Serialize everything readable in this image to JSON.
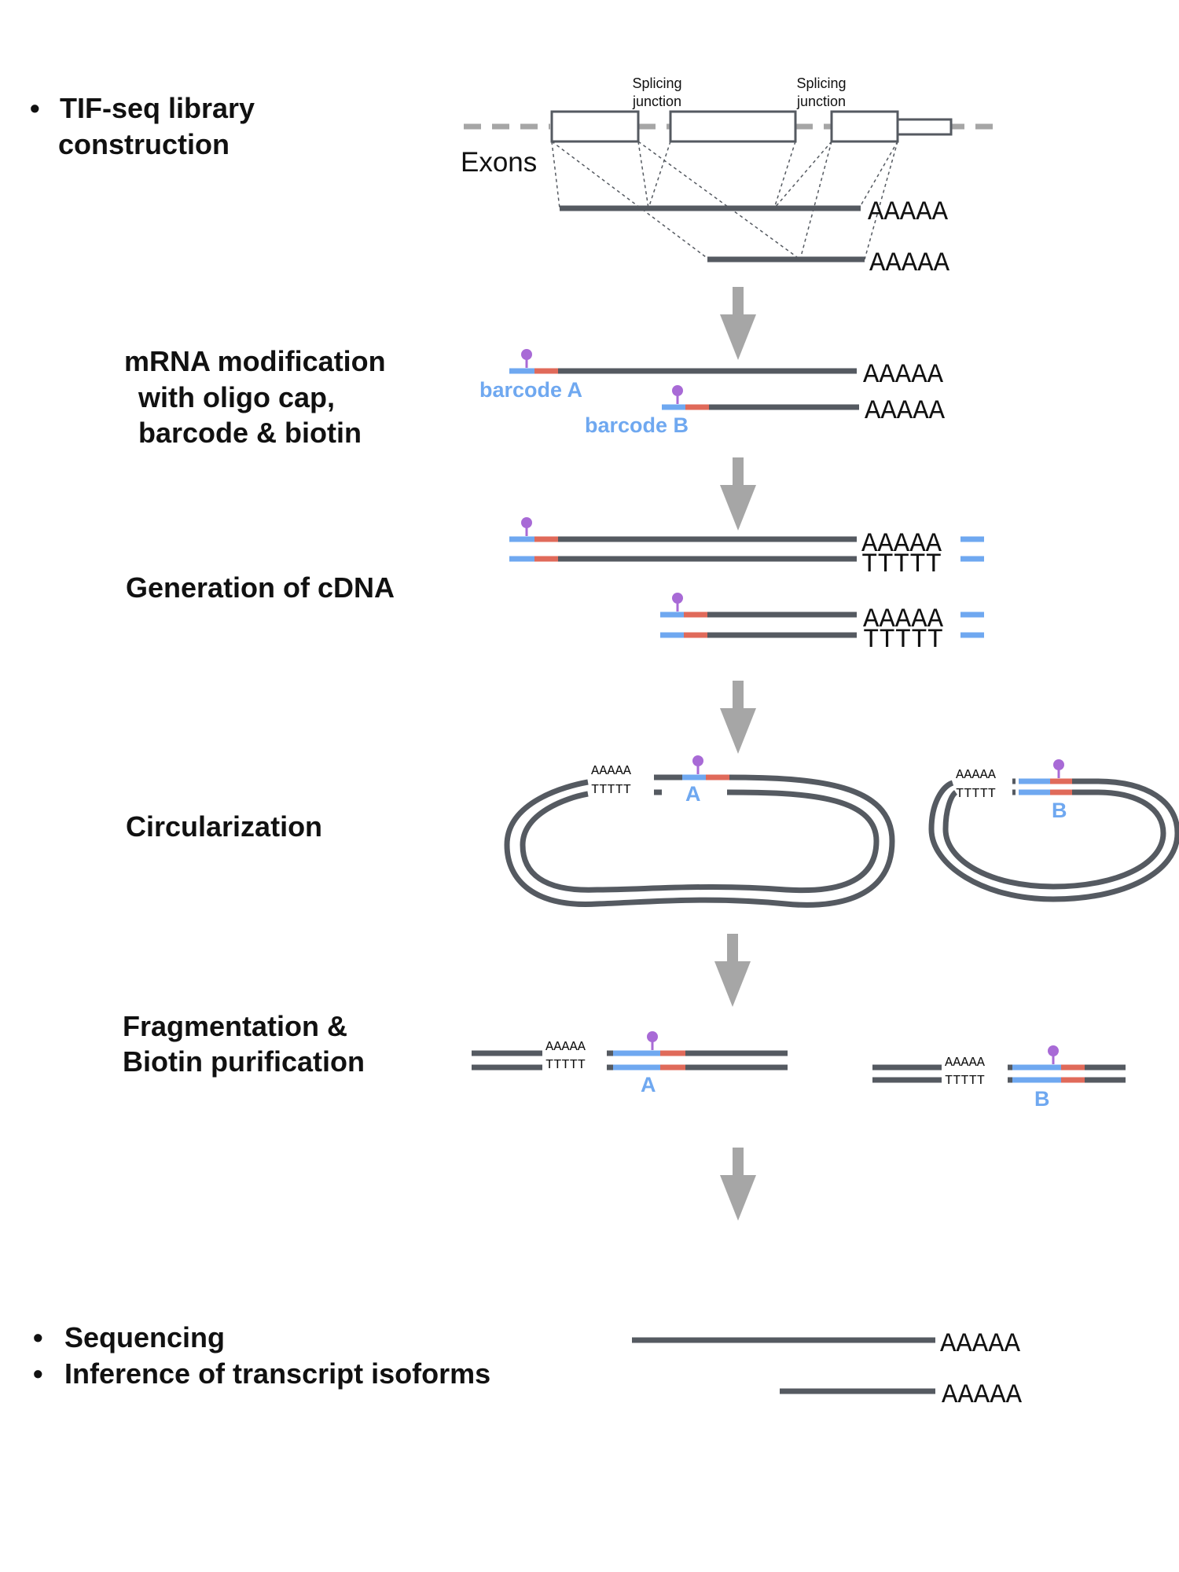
{
  "colors": {
    "strand": "#555a61",
    "barcode": "#6fa8f0",
    "linker": "#e06a5a",
    "biotin": "#a86ad6",
    "arrow": "#a6a6a6",
    "dashed": "#a6a6a6",
    "exon_stroke": "#555a61",
    "label_blue": "#6fa8f0"
  },
  "steps": {
    "step1": {
      "bullet": "•",
      "line1": "TIF-seq library",
      "line2": "construction"
    },
    "step2": {
      "line1": "mRNA modification",
      "line2": "with oligo cap,",
      "line3": "barcode & biotin"
    },
    "step3": {
      "line1": "Generation of cDNA"
    },
    "step4": {
      "line1": "Circularization"
    },
    "step5": {
      "line1": "Fragmentation &",
      "line2": "Biotin purification"
    },
    "step6": {
      "bullet1": "•",
      "line1": "Sequencing",
      "bullet2": "•",
      "line2": "Inference of transcript isoforms"
    }
  },
  "gene_model": {
    "exons_label": "Exons",
    "junction1": {
      "line1": "Splicing",
      "line2": "junction"
    },
    "junction2": {
      "line1": "Splicing",
      "line2": "junction"
    }
  },
  "polyA": "AAAAA",
  "polyT": "TTTTT",
  "barcodes": {
    "a_full": "barcode A",
    "b_full": "barcode B",
    "a_short": "A",
    "b_short": "B"
  }
}
